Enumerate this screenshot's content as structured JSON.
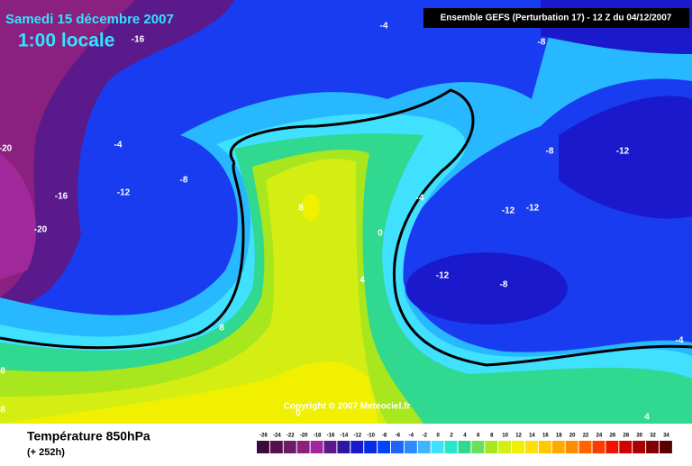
{
  "header": {
    "date": "Samedi 15 décembre 2007",
    "time": "1:00 locale",
    "run": "Ensemble GEFS (Perturbation 17)  -  12 Z du 04/12/2007"
  },
  "copyright": "Copyright © 2007 Meteociel.fr",
  "footer": {
    "variable": "Température 850hPa",
    "lead": "(+ 252h)"
  },
  "contour_labels": [
    -16,
    -4,
    -8,
    -4,
    -20,
    -8,
    -16,
    -12,
    -20,
    8,
    -4,
    -8,
    -12,
    -12,
    -12,
    0,
    -12,
    -8,
    4,
    8,
    -4,
    8,
    8,
    4,
    0
  ],
  "legend": {
    "values": [
      -26,
      -24,
      -22,
      -20,
      -18,
      -16,
      -14,
      -12,
      -10,
      -8,
      -6,
      -4,
      -2,
      0,
      2,
      4,
      6,
      8,
      10,
      12,
      14,
      16,
      18,
      20,
      22,
      24,
      26,
      28,
      30,
      32,
      34
    ],
    "colors": [
      "#3c0a3c",
      "#55114f",
      "#6e1a66",
      "#8a2080",
      "#a0289a",
      "#5a1a8c",
      "#2a1aa0",
      "#1a1acc",
      "#0a2ae6",
      "#0044ff",
      "#1a66ff",
      "#2a8cff",
      "#40b4ff",
      "#40e0ff",
      "#2ae6c8",
      "#30d890",
      "#6ae05a",
      "#a8e61e",
      "#d4ee14",
      "#f0f000",
      "#ffe000",
      "#ffc800",
      "#ffaa00",
      "#ff8c00",
      "#ff6400",
      "#ff3c00",
      "#f01400",
      "#d20000",
      "#aa0000",
      "#820000",
      "#5a0000"
    ]
  }
}
